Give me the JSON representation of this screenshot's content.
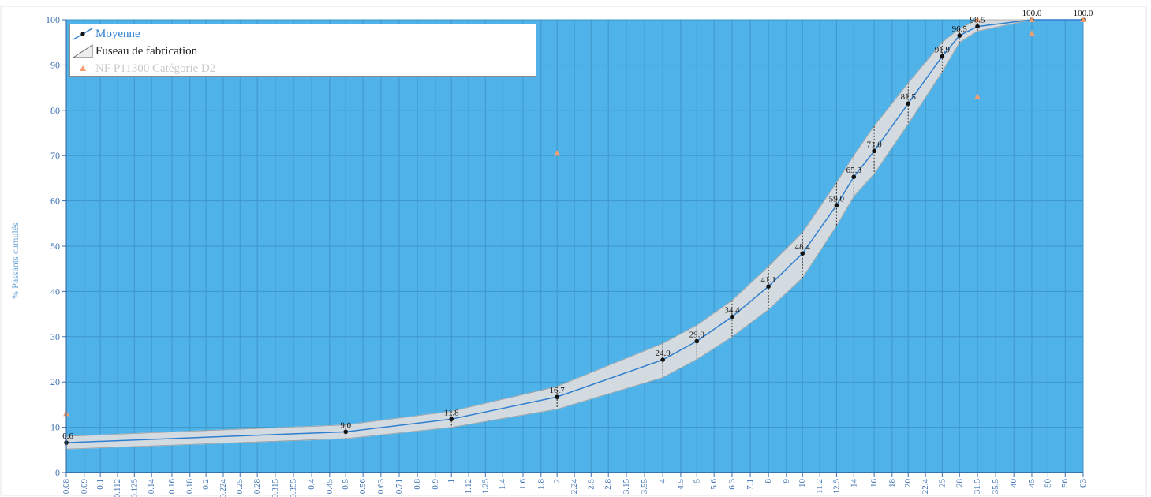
{
  "chart_data": {
    "type": "line",
    "title": "",
    "xlabel": "",
    "ylabel": "% Passants cumulés",
    "ylim": [
      0,
      100
    ],
    "y_ticks": [
      0,
      10,
      20,
      30,
      40,
      50,
      60,
      70,
      80,
      90,
      100
    ],
    "x_scale": "log",
    "x_tick_labels": [
      "0.08",
      "0.09",
      "0.1",
      "0.112",
      "0.125",
      "0.14",
      "0.16",
      "0.18",
      "0.2",
      "0.224",
      "0.25",
      "0.28",
      "0.315",
      "0.355",
      "0.4",
      "0.45",
      "0.5",
      "0.56",
      "0.63",
      "0.71",
      "0.8",
      "0.9",
      "1",
      "1.12",
      "1.25",
      "1.4",
      "1.6",
      "1.8",
      "2",
      "2.24",
      "2.5",
      "2.8",
      "3.15",
      "3.55",
      "4",
      "4.5",
      "5",
      "5.6",
      "6.3",
      "7.1",
      "8",
      "9",
      "10",
      "11.2",
      "12.5",
      "14",
      "16",
      "18",
      "20",
      "22.4",
      "25",
      "28",
      "31.5",
      "35.5",
      "40",
      "45",
      "50",
      "56",
      "63"
    ],
    "grid": true,
    "background": "#4fb3ea",
    "legend_position": "top-left",
    "legend": {
      "moyenne": "Moyenne",
      "fuseau": "Fuseau de fabrication",
      "norme": "NF P11300 Catégorie D2"
    },
    "series": [
      {
        "name": "Moyenne",
        "color": "#2f7fd0",
        "x": [
          0.08,
          0.5,
          1,
          2,
          4,
          5,
          6.3,
          8,
          10,
          12.5,
          14,
          16,
          20,
          25,
          28,
          31.5,
          45,
          63
        ],
        "values": [
          6.6,
          9.0,
          11.8,
          16.7,
          24.9,
          29.0,
          34.4,
          41.1,
          48.4,
          59.0,
          65.3,
          71.0,
          81.5,
          91.9,
          96.5,
          98.5,
          100.0,
          100.0
        ],
        "labels": [
          "6.6",
          "9.0",
          "11.8",
          "16.7",
          "24.9",
          "29.0",
          "34.4",
          "41.1",
          "48.4",
          "59.0",
          "65.3",
          "71.0",
          "81.5",
          "91.9",
          "96.5",
          "98.5",
          "100.0",
          "100.0"
        ]
      },
      {
        "name": "Fuseau de fabrication",
        "color": "#dcdcdc",
        "x": [
          0.08,
          0.5,
          1,
          2,
          4,
          5,
          6.3,
          8,
          10,
          12.5,
          14,
          16,
          20,
          25,
          28,
          31.5,
          45,
          63
        ],
        "upper": [
          8.0,
          10.5,
          13.5,
          19.0,
          28.5,
          32.5,
          38.0,
          45.5,
          53.0,
          64.0,
          70.0,
          76.5,
          86.0,
          95.0,
          98.0,
          100.0,
          100.0,
          100.0
        ],
        "lower": [
          5.2,
          7.5,
          10.0,
          14.0,
          21.0,
          25.0,
          30.0,
          36.0,
          43.0,
          54.5,
          61.0,
          66.0,
          77.0,
          88.5,
          95.0,
          97.5,
          100.0,
          100.0
        ]
      },
      {
        "name": "NF P11300 Catégorie D2",
        "color": "#f0a070",
        "x": [
          0.08,
          2,
          31.5,
          31.5,
          45,
          45,
          63
        ],
        "values": [
          13,
          70.5,
          83,
          100,
          97,
          100,
          100
        ]
      }
    ]
  }
}
